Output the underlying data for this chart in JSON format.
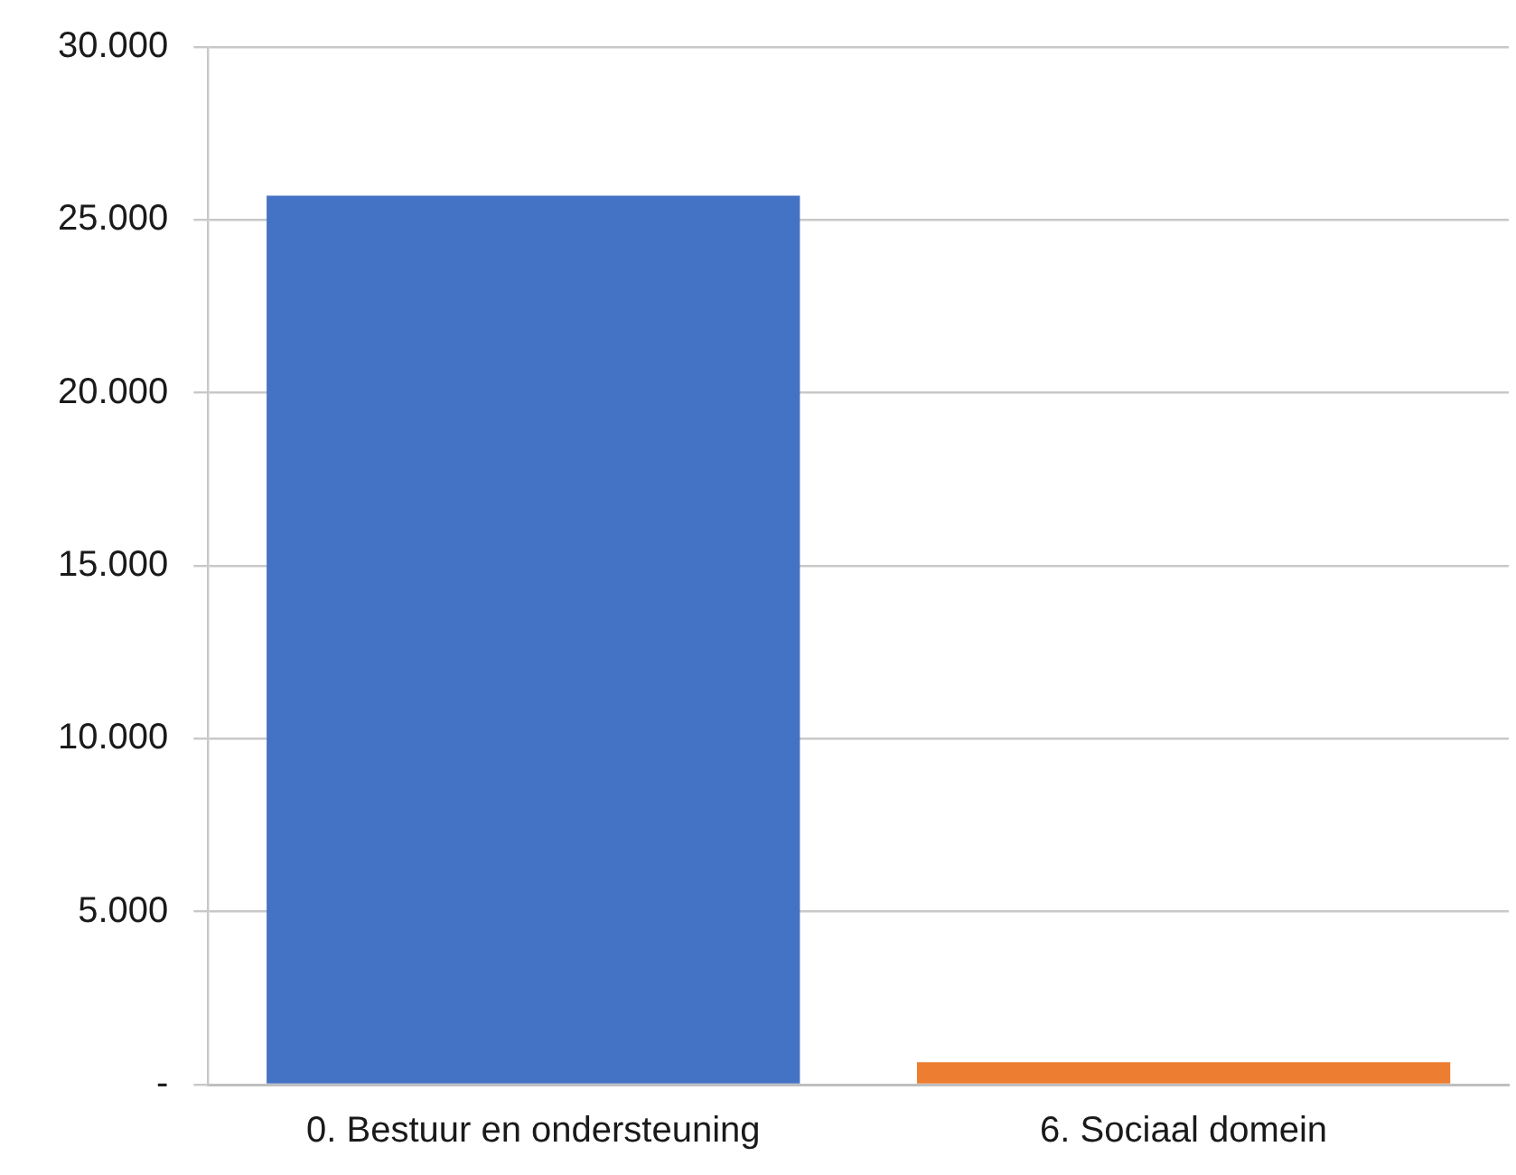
{
  "chart_data": {
    "type": "bar",
    "categories": [
      "0. Bestuur en ondersteuning",
      "6. Sociaal domein"
    ],
    "values": [
      25700,
      650
    ],
    "colors": [
      "#4472c4",
      "#ed7d31"
    ],
    "ylim": [
      0,
      30000
    ],
    "yticks": [
      {
        "value": 0,
        "label": "-"
      },
      {
        "value": 5000,
        "label": "5.000"
      },
      {
        "value": 10000,
        "label": "10.000"
      },
      {
        "value": 15000,
        "label": "15.000"
      },
      {
        "value": 20000,
        "label": "20.000"
      },
      {
        "value": 25000,
        "label": "25.000"
      },
      {
        "value": 30000,
        "label": "30.000"
      }
    ],
    "grid": "y",
    "legend": false
  }
}
